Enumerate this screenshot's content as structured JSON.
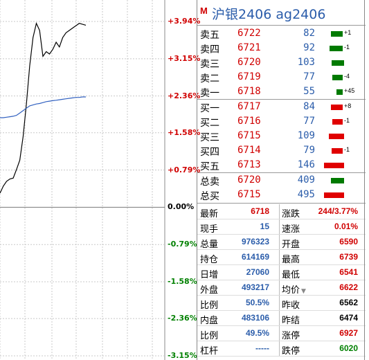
{
  "title": {
    "marker": "M",
    "name": "沪银2406  ag2406"
  },
  "axis_labels": [
    {
      "text": "+3.94%",
      "cls": "up"
    },
    {
      "text": "+3.15%",
      "cls": "up"
    },
    {
      "text": "+2.36%",
      "cls": "up"
    },
    {
      "text": "+1.58%",
      "cls": "up"
    },
    {
      "text": "+0.79%",
      "cls": "up"
    },
    {
      "text": "0.00%",
      "cls": "flat"
    },
    {
      "text": "-0.79%",
      "cls": "down"
    },
    {
      "text": "-1.58%",
      "cls": "down"
    },
    {
      "text": "-2.36%",
      "cls": "down"
    },
    {
      "text": "-3.15%",
      "cls": "down"
    }
  ],
  "asks": [
    {
      "label": "卖五",
      "price": "6722",
      "vol": "82",
      "bar": "green",
      "change": "+1",
      "bar_fill": 0.28
    },
    {
      "label": "卖四",
      "price": "6721",
      "vol": "92",
      "bar": "green",
      "change": "-1",
      "bar_fill": 0.32
    },
    {
      "label": "卖三",
      "price": "6720",
      "vol": "103",
      "bar": "green",
      "change": "",
      "bar_fill": 0.3
    },
    {
      "label": "卖二",
      "price": "6719",
      "vol": "77",
      "bar": "green",
      "change": "-4",
      "bar_fill": 0.25
    },
    {
      "label": "卖一",
      "price": "6718",
      "vol": "55",
      "bar": "green",
      "change": "+45",
      "bar_fill": 0.15
    }
  ],
  "bids": [
    {
      "label": "买一",
      "price": "6717",
      "vol": "84",
      "bar": "red",
      "change": "+8",
      "bar_fill": 0.28
    },
    {
      "label": "买二",
      "price": "6716",
      "vol": "77",
      "bar": "red",
      "change": "-1",
      "bar_fill": 0.25
    },
    {
      "label": "买三",
      "price": "6715",
      "vol": "109",
      "bar": "red",
      "change": "",
      "bar_fill": 0.36
    },
    {
      "label": "买四",
      "price": "6714",
      "vol": "79",
      "bar": "red",
      "change": "-1",
      "bar_fill": 0.26
    },
    {
      "label": "买五",
      "price": "6713",
      "vol": "146",
      "bar": "red",
      "change": "",
      "bar_fill": 0.48
    }
  ],
  "totals": [
    {
      "label": "总卖",
      "price": "6720",
      "vol": "409",
      "bar": "green",
      "bar_fill": 0.32
    },
    {
      "label": "总买",
      "price": "6715",
      "vol": "495",
      "bar": "red",
      "bar_fill": 0.48
    }
  ],
  "stats": [
    {
      "l1": "最新",
      "v1": "6718",
      "c1": "red",
      "l2": "涨跌",
      "v2": "244/3.77%",
      "c2": "red"
    },
    {
      "l1": "现手",
      "v1": "15",
      "c1": "blue",
      "l2": "速涨",
      "v2": "0.01%",
      "c2": "red"
    },
    {
      "l1": "总量",
      "v1": "976323",
      "c1": "blue",
      "l2": "开盘",
      "v2": "6590",
      "c2": "red"
    },
    {
      "l1": "持仓",
      "v1": "614169",
      "c1": "blue",
      "l2": "最高",
      "v2": "6739",
      "c2": "red"
    },
    {
      "l1": "日增",
      "v1": "27060",
      "c1": "blue",
      "l2": "最低",
      "v2": "6541",
      "c2": "red"
    },
    {
      "l1": "外盘",
      "v1": "493217",
      "c1": "blue",
      "l2": "均价",
      "v2": "6622",
      "c2": "red",
      "caret": "▼"
    },
    {
      "l1": "比例",
      "v1": "50.5%",
      "c1": "blue",
      "l2": "昨收",
      "v2": "6562",
      "c2": "black"
    },
    {
      "l1": "内盘",
      "v1": "483106",
      "c1": "blue",
      "l2": "昨结",
      "v2": "6474",
      "c2": "black"
    },
    {
      "l1": "比例",
      "v1": "49.5%",
      "c1": "blue",
      "l2": "涨停",
      "v2": "6927",
      "c2": "red"
    },
    {
      "l1": "杠杆",
      "v1": "-----",
      "c1": "blue",
      "l2": "跌停",
      "v2": "6020",
      "c2": "green"
    }
  ],
  "chart_data": {
    "type": "line",
    "ylim": [
      -3.15,
      3.94
    ],
    "series": [
      {
        "values": [
          0.3,
          0.45,
          0.55,
          0.6,
          0.62,
          0.8,
          1.0,
          1.5,
          2.2,
          3.0,
          3.6,
          3.9,
          3.75,
          3.2,
          3.3,
          3.25,
          3.35,
          3.5,
          3.4,
          3.6,
          3.7,
          3.75,
          3.8,
          3.85,
          3.9,
          3.88,
          3.86
        ],
        "color": "#000000"
      },
      {
        "values": [
          1.9,
          1.9,
          1.91,
          1.92,
          1.93,
          1.95,
          2.0,
          2.05,
          2.1,
          2.15,
          2.17,
          2.19,
          2.2,
          2.22,
          2.24,
          2.25,
          2.26,
          2.27,
          2.28,
          2.29,
          2.3,
          2.31,
          2.32,
          2.33,
          2.33,
          2.34,
          2.34
        ],
        "color": "#3060c0"
      }
    ]
  }
}
